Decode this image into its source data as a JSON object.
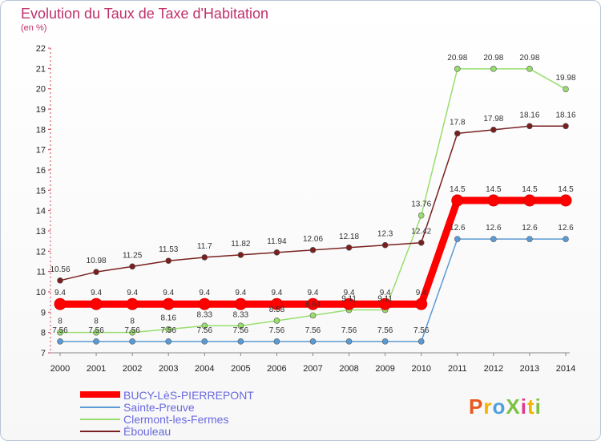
{
  "title": "Evolution du Taux de Taxe d'Habitation",
  "unit": "(en %)",
  "logo": {
    "text": "ProXiti",
    "colors": [
      "#e8591b",
      "#f0b400",
      "#4fa0e0",
      "#7cc242",
      "#e03a8a",
      "#f0b400",
      "#7cc242"
    ]
  },
  "chart_data": {
    "type": "line",
    "x": [
      "2000",
      "2001",
      "2002",
      "2003",
      "2004",
      "2005",
      "2006",
      "2007",
      "2008",
      "2009",
      "2010",
      "2011",
      "2012",
      "2013",
      "2014"
    ],
    "ylim": [
      7,
      22
    ],
    "yticks": [
      7,
      8,
      9,
      10,
      11,
      12,
      13,
      14,
      15,
      16,
      17,
      18,
      19,
      20,
      21,
      22
    ],
    "grid": false,
    "legend_position": "bottom-left",
    "series": [
      {
        "name": "BUCY-LèS-PIERREPONT",
        "color": "#ff0000",
        "width": 9,
        "values": [
          9.4,
          9.4,
          9.4,
          9.4,
          9.4,
          9.4,
          9.4,
          9.4,
          9.4,
          9.4,
          9.4,
          14.5,
          14.5,
          14.5,
          14.5
        ],
        "labels": [
          "9.4",
          "9.4",
          "9.4",
          "9.4",
          "9.4",
          "9.4",
          "9.4",
          "9.4",
          "9.4",
          "9.4",
          "9.4",
          "14.5",
          "14.5",
          "14.5",
          "14.5"
        ]
      },
      {
        "name": "Sainte-Preuve",
        "color": "#5b9bd5",
        "width": 1.5,
        "values": [
          7.56,
          7.56,
          7.56,
          7.56,
          7.56,
          7.56,
          7.56,
          7.56,
          7.56,
          7.56,
          7.56,
          12.6,
          12.6,
          12.6,
          12.6
        ],
        "labels": [
          "7.56",
          "7.56",
          "7.56",
          "7.56",
          "7.56",
          "7.56",
          "7.56",
          "7.56",
          "7.56",
          "7.56",
          "7.56",
          "12.6",
          "12.6",
          "12.6",
          "12.6"
        ]
      },
      {
        "name": "Clermont-les-Fermes",
        "color": "#98de6e",
        "width": 1.5,
        "values": [
          8,
          8,
          8,
          8.16,
          8.33,
          8.33,
          8.58,
          8.84,
          9.11,
          9.11,
          13.76,
          20.98,
          20.98,
          20.98,
          19.98
        ],
        "labels": [
          "8",
          "8",
          "8",
          "8.16",
          "8.33",
          "8.33",
          "8.58",
          "8.84",
          "9.11",
          "9.11",
          "13.76",
          "20.98",
          "20.98",
          "20.98",
          "19.98"
        ]
      },
      {
        "name": "Ébouleau",
        "color": "#7a1f1f",
        "width": 1.5,
        "values": [
          10.56,
          10.98,
          11.25,
          11.53,
          11.7,
          11.82,
          11.94,
          12.06,
          12.18,
          12.3,
          12.42,
          17.8,
          17.98,
          18.16,
          18.16
        ],
        "labels": [
          "10.56",
          "10.98",
          "11.25",
          "11.53",
          "11.7",
          "11.82",
          "11.94",
          "12.06",
          "12.18",
          "12.3",
          "12.42",
          "17.8",
          "17.98",
          "18.16",
          "18.16"
        ]
      }
    ]
  }
}
